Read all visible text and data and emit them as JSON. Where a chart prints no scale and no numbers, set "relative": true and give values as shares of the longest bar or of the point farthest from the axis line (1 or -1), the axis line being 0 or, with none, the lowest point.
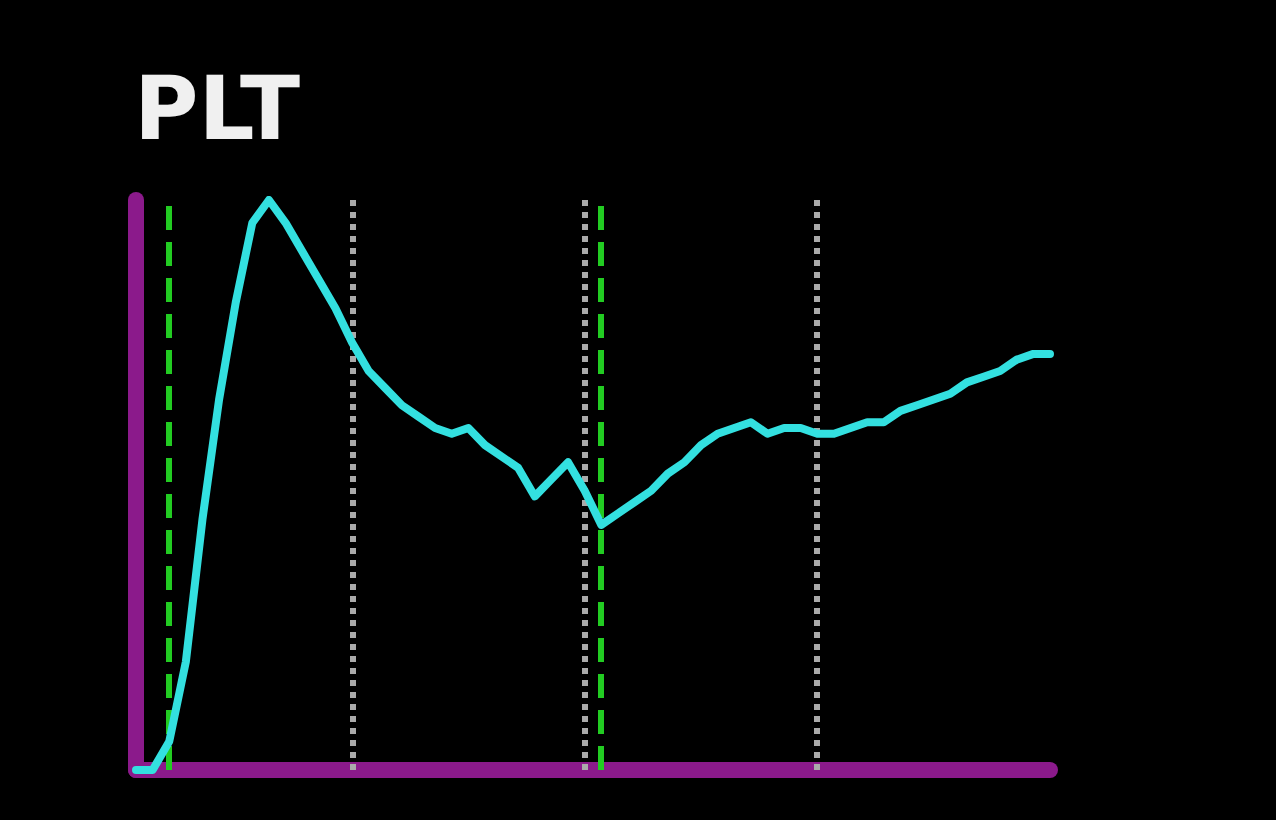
{
  "chart_data": {
    "type": "line",
    "title": "PLT",
    "relative": true,
    "categories": [
      null,
      null,
      null,
      null,
      null,
      null,
      null,
      null,
      null,
      null,
      null,
      null,
      null,
      null,
      null,
      null,
      null,
      null,
      null,
      null,
      null,
      null,
      null,
      null,
      null,
      null,
      null,
      null,
      null,
      null,
      null,
      null,
      null,
      null,
      null,
      null,
      null,
      null,
      null,
      null,
      null,
      null,
      null,
      null,
      null,
      null,
      null,
      null,
      null,
      null,
      null,
      null,
      null,
      null,
      null,
      null
    ],
    "series": [
      {
        "color": "#33e0e0",
        "values": [
          0,
          0,
          0.05,
          0.19,
          0.44,
          0.65,
          0.82,
          0.96,
          1,
          0.96,
          0.91,
          0.86,
          0.81,
          0.75,
          0.7,
          0.67,
          0.64,
          0.62,
          0.6,
          0.59,
          0.6,
          0.57,
          0.55,
          0.53,
          0.48,
          0.51,
          0.54,
          0.49,
          0.43,
          0.45,
          0.47,
          0.49,
          0.52,
          0.54,
          0.57,
          0.59,
          0.6,
          0.61,
          0.59,
          0.6,
          0.6,
          0.59,
          0.59,
          0.6,
          0.61,
          0.61,
          0.63,
          0.64,
          0.65,
          0.66,
          0.68,
          0.69,
          0.7,
          0.72,
          0.73,
          0.73
        ]
      }
    ],
    "line_style": "solid",
    "grid": "x"
  }
}
